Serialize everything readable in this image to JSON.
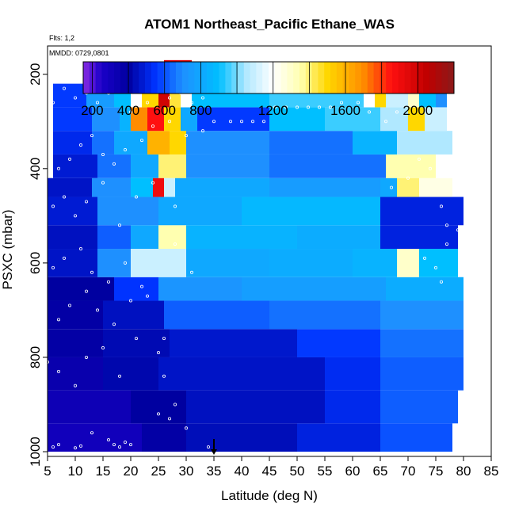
{
  "chart_data": {
    "type": "heatmap",
    "title": "ATOM1 Northeast_Pacific Ethane_WAS",
    "note_flights": "Flts: 1,2",
    "note_dates": "MMDD: 0729,0801",
    "xlabel": "Latitude (deg N)",
    "ylabel": "PSXC (mbar)",
    "xlim": [
      5,
      85
    ],
    "ylim": [
      1010,
      140
    ],
    "y_reversed": true,
    "x_ticks": [
      "5",
      "10",
      "15",
      "20",
      "25",
      "30",
      "35",
      "40",
      "45",
      "50",
      "55",
      "60",
      "65",
      "70",
      "75",
      "80",
      "85"
    ],
    "y_ticks": [
      "200",
      "400",
      "600",
      "800",
      "1000"
    ],
    "colorbar": {
      "range": [
        150,
        2200
      ],
      "ticks": [
        "200",
        "400",
        "600",
        "800",
        "1200",
        "1600",
        "2000"
      ],
      "stops": [
        {
          "v": 150,
          "c": "#8a2be2"
        },
        {
          "v": 250,
          "c": "#1a00c8"
        },
        {
          "v": 400,
          "c": "#0000a0"
        },
        {
          "v": 550,
          "c": "#0033ff"
        },
        {
          "v": 700,
          "c": "#1e90ff"
        },
        {
          "v": 900,
          "c": "#00bfff"
        },
        {
          "v": 1050,
          "c": "#b0e8ff"
        },
        {
          "v": 1200,
          "c": "#ffffff"
        },
        {
          "v": 1350,
          "c": "#ffffb0"
        },
        {
          "v": 1500,
          "c": "#ffd700"
        },
        {
          "v": 1700,
          "c": "#ff8c00"
        },
        {
          "v": 1850,
          "c": "#ff1010"
        },
        {
          "v": 2050,
          "c": "#c00000"
        },
        {
          "v": 2200,
          "c": "#8b1a1a"
        }
      ]
    },
    "rows": [
      {
        "p0": 1000,
        "p1": 940,
        "segs": [
          [
            5,
            22,
            300
          ],
          [
            22,
            30,
            380
          ],
          [
            30,
            50,
            440
          ],
          [
            50,
            65,
            500
          ],
          [
            65,
            78,
            600
          ]
        ]
      },
      {
        "p0": 940,
        "p1": 870,
        "segs": [
          [
            5,
            20,
            320
          ],
          [
            20,
            30,
            400
          ],
          [
            30,
            55,
            450
          ],
          [
            55,
            65,
            520
          ],
          [
            65,
            79,
            620
          ]
        ]
      },
      {
        "p0": 870,
        "p1": 800,
        "segs": [
          [
            5,
            15,
            350
          ],
          [
            15,
            25,
            420
          ],
          [
            25,
            55,
            460
          ],
          [
            55,
            65,
            530
          ],
          [
            65,
            80,
            620
          ]
        ]
      },
      {
        "p0": 800,
        "p1": 740,
        "segs": [
          [
            5,
            15,
            380
          ],
          [
            15,
            27,
            430
          ],
          [
            27,
            50,
            470
          ],
          [
            50,
            65,
            560
          ],
          [
            65,
            80,
            650
          ]
        ]
      },
      {
        "p0": 740,
        "p1": 680,
        "segs": [
          [
            5,
            15,
            380
          ],
          [
            15,
            26,
            450
          ],
          [
            26,
            45,
            620
          ],
          [
            45,
            65,
            650
          ],
          [
            65,
            80,
            700
          ]
        ]
      },
      {
        "p0": 680,
        "p1": 630,
        "segs": [
          [
            5,
            17,
            400
          ],
          [
            17,
            25,
            550
          ],
          [
            25,
            40,
            720
          ],
          [
            40,
            66,
            760
          ],
          [
            66,
            80,
            820
          ]
        ]
      },
      {
        "p0": 630,
        "p1": 570,
        "segs": [
          [
            5,
            14,
            460
          ],
          [
            14,
            20,
            700
          ],
          [
            20,
            30,
            1100
          ],
          [
            30,
            45,
            800
          ],
          [
            45,
            60,
            820
          ],
          [
            60,
            68,
            850
          ],
          [
            68,
            72,
            1300
          ],
          [
            72,
            79,
            900
          ]
        ]
      },
      {
        "p0": 570,
        "p1": 520,
        "segs": [
          [
            5,
            14,
            450
          ],
          [
            14,
            20,
            620
          ],
          [
            20,
            25,
            800
          ],
          [
            25,
            30,
            1350
          ],
          [
            30,
            50,
            850
          ],
          [
            50,
            65,
            820
          ],
          [
            65,
            79,
            500
          ]
        ]
      },
      {
        "p0": 520,
        "p1": 460,
        "segs": [
          [
            5,
            14,
            480
          ],
          [
            14,
            25,
            700
          ],
          [
            25,
            40,
            800
          ],
          [
            40,
            65,
            870
          ],
          [
            65,
            80,
            500
          ]
        ]
      },
      {
        "p0": 460,
        "p1": 420,
        "segs": [
          [
            5,
            13,
            460
          ],
          [
            13,
            20,
            700
          ],
          [
            20,
            24,
            900
          ],
          [
            24,
            26,
            1900
          ],
          [
            26,
            28,
            1100
          ],
          [
            28,
            45,
            800
          ],
          [
            45,
            65,
            750
          ],
          [
            65,
            68,
            800
          ],
          [
            68,
            72,
            1400
          ],
          [
            72,
            78,
            1250
          ]
        ]
      },
      {
        "p0": 420,
        "p1": 370,
        "segs": [
          [
            6,
            14,
            480
          ],
          [
            14,
            20,
            650
          ],
          [
            20,
            25,
            800
          ],
          [
            25,
            30,
            1400
          ],
          [
            30,
            45,
            700
          ],
          [
            45,
            66,
            650
          ],
          [
            66,
            75,
            1350
          ],
          [
            75,
            78,
            1200
          ]
        ]
      },
      {
        "p0": 370,
        "p1": 320,
        "segs": [
          [
            6,
            13,
            520
          ],
          [
            13,
            17,
            650
          ],
          [
            17,
            23,
            800
          ],
          [
            23,
            27,
            1600
          ],
          [
            27,
            30,
            1500
          ],
          [
            30,
            45,
            700
          ],
          [
            45,
            60,
            650
          ],
          [
            60,
            68,
            850
          ],
          [
            68,
            78,
            1050
          ]
        ]
      },
      {
        "p0": 320,
        "p1": 270,
        "segs": [
          [
            6,
            13,
            560
          ],
          [
            13,
            18,
            700
          ],
          [
            18,
            20,
            850
          ],
          [
            20,
            23,
            1700
          ],
          [
            23,
            26,
            1850
          ],
          [
            26,
            29,
            1500
          ],
          [
            29,
            32,
            800
          ],
          [
            32,
            45,
            560
          ],
          [
            45,
            55,
            900
          ],
          [
            55,
            65,
            950
          ],
          [
            65,
            70,
            1050
          ],
          [
            70,
            73,
            1500
          ],
          [
            73,
            77,
            1100
          ]
        ]
      },
      {
        "p0": 270,
        "p1": 220,
        "segs": [
          [
            6,
            12,
            560
          ],
          [
            12,
            17,
            750
          ],
          [
            17,
            20,
            900
          ],
          [
            20,
            22,
            1200
          ],
          [
            22,
            25,
            1500
          ],
          [
            25,
            27,
            2000
          ],
          [
            27,
            29,
            1450
          ],
          [
            29,
            31,
            1200
          ],
          [
            31,
            45,
            900
          ],
          [
            45,
            62,
            950
          ],
          [
            62,
            64,
            1200
          ],
          [
            64,
            66,
            1500
          ],
          [
            66,
            70,
            1100
          ],
          [
            70,
            72,
            1300
          ],
          [
            72,
            75,
            900
          ],
          [
            75,
            77,
            700
          ]
        ]
      },
      {
        "p0": 220,
        "p1": 170,
        "segs": [
          [
            26,
            31,
            1950
          ]
        ]
      }
    ],
    "markers": [
      [
        6,
        990
      ],
      [
        7,
        985
      ],
      [
        10,
        992
      ],
      [
        11,
        988
      ],
      [
        13,
        960
      ],
      [
        16,
        975
      ],
      [
        17,
        985
      ],
      [
        18,
        990
      ],
      [
        19,
        980
      ],
      [
        20,
        985
      ],
      [
        25,
        920
      ],
      [
        27,
        930
      ],
      [
        30,
        950
      ],
      [
        34,
        990
      ],
      [
        5,
        810
      ],
      [
        7,
        830
      ],
      [
        10,
        860
      ],
      [
        12,
        800
      ],
      [
        15,
        780
      ],
      [
        18,
        840
      ],
      [
        21,
        760
      ],
      [
        25,
        790
      ],
      [
        26,
        840
      ],
      [
        28,
        900
      ],
      [
        7,
        720
      ],
      [
        9,
        690
      ],
      [
        12,
        660
      ],
      [
        14,
        700
      ],
      [
        17,
        730
      ],
      [
        20,
        680
      ],
      [
        23,
        670
      ],
      [
        26,
        760
      ],
      [
        6,
        610
      ],
      [
        8,
        590
      ],
      [
        11,
        570
      ],
      [
        13,
        620
      ],
      [
        16,
        640
      ],
      [
        19,
        600
      ],
      [
        22,
        650
      ],
      [
        28,
        560
      ],
      [
        31,
        620
      ],
      [
        73,
        590
      ],
      [
        75,
        610
      ],
      [
        77,
        560
      ],
      [
        79,
        530
      ],
      [
        76,
        640
      ],
      [
        6,
        480
      ],
      [
        8,
        460
      ],
      [
        10,
        500
      ],
      [
        12,
        470
      ],
      [
        15,
        430
      ],
      [
        18,
        520
      ],
      [
        21,
        460
      ],
      [
        24,
        430
      ],
      [
        28,
        480
      ],
      [
        76,
        480
      ],
      [
        77,
        520
      ],
      [
        79,
        450
      ],
      [
        74,
        400
      ],
      [
        72,
        380
      ],
      [
        70,
        420
      ],
      [
        67,
        440
      ],
      [
        7,
        400
      ],
      [
        9,
        380
      ],
      [
        11,
        350
      ],
      [
        13,
        330
      ],
      [
        15,
        370
      ],
      [
        17,
        390
      ],
      [
        19,
        360
      ],
      [
        22,
        340
      ],
      [
        24,
        310
      ],
      [
        27,
        300
      ],
      [
        30,
        330
      ],
      [
        33,
        320
      ],
      [
        35,
        300
      ],
      [
        38,
        300
      ],
      [
        40,
        300
      ],
      [
        42,
        300
      ],
      [
        44,
        300
      ],
      [
        46,
        270
      ],
      [
        48,
        270
      ],
      [
        50,
        270
      ],
      [
        52,
        270
      ],
      [
        54,
        270
      ],
      [
        56,
        270
      ],
      [
        58,
        260
      ],
      [
        61,
        260
      ],
      [
        63,
        280
      ],
      [
        66,
        300
      ],
      [
        68,
        280
      ],
      [
        6,
        260
      ],
      [
        8,
        230
      ],
      [
        10,
        250
      ],
      [
        12,
        240
      ],
      [
        14,
        260
      ],
      [
        16,
        240
      ],
      [
        18,
        230
      ],
      [
        20,
        280
      ],
      [
        23,
        260
      ],
      [
        25,
        230
      ],
      [
        27,
        250
      ],
      [
        29,
        240
      ],
      [
        31,
        260
      ],
      [
        33,
        250
      ]
    ],
    "arrow_latitude": 35
  }
}
